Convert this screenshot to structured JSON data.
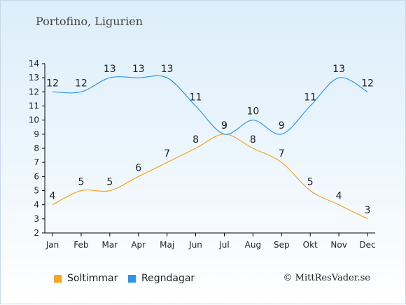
{
  "title": "Portofino, Ligurien",
  "copyright": "© MittResVader.se",
  "chart_data": {
    "type": "line",
    "categories": [
      "Jan",
      "Feb",
      "Mar",
      "Apr",
      "Maj",
      "Jun",
      "Jul",
      "Aug",
      "Sep",
      "Okt",
      "Nov",
      "Dec"
    ],
    "ylim": [
      2,
      14
    ],
    "yticks": [
      2,
      3,
      4,
      5,
      6,
      7,
      8,
      9,
      10,
      11,
      12,
      13,
      14
    ],
    "grid": false,
    "legend_placement": "bottom-left",
    "series": [
      {
        "name": "Soltimmar",
        "color": "#f5a623",
        "values": [
          4,
          5,
          5,
          6,
          7,
          8,
          9,
          8,
          7,
          5,
          4,
          3
        ]
      },
      {
        "name": "Regndagar",
        "color": "#2d94e8",
        "values": [
          12,
          12,
          13,
          13,
          13,
          11,
          9,
          10,
          9,
          11,
          13,
          12
        ]
      }
    ]
  }
}
